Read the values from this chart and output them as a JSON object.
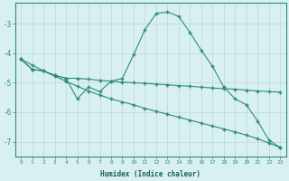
{
  "xlabel": "Humidex (Indice chaleur)",
  "x": [
    0,
    1,
    2,
    3,
    4,
    5,
    6,
    7,
    8,
    9,
    10,
    11,
    12,
    13,
    14,
    15,
    16,
    17,
    18,
    19,
    20,
    21,
    22,
    23
  ],
  "y_main": [
    -4.2,
    -4.55,
    -4.6,
    -4.75,
    -4.85,
    -5.55,
    -5.15,
    -5.3,
    -4.95,
    -4.85,
    -4.05,
    -3.2,
    -2.65,
    -2.6,
    -2.75,
    -3.3,
    -3.9,
    -4.45,
    -5.15,
    -5.55,
    -5.75,
    -6.3,
    -6.95,
    -7.2
  ],
  "y_upper": [
    -4.2,
    -4.55,
    -4.6,
    -4.75,
    -4.85,
    -4.85,
    -4.88,
    -4.92,
    -4.95,
    -4.98,
    -5.0,
    -5.02,
    -5.05,
    -5.07,
    -5.1,
    -5.12,
    -5.15,
    -5.18,
    -5.2,
    -5.22,
    -5.25,
    -5.28,
    -5.3,
    -5.32
  ],
  "y_lower": [
    -4.2,
    -4.4,
    -4.6,
    -4.78,
    -4.95,
    -5.12,
    -5.28,
    -5.42,
    -5.55,
    -5.65,
    -5.75,
    -5.87,
    -5.97,
    -6.07,
    -6.17,
    -6.27,
    -6.37,
    -6.47,
    -6.57,
    -6.67,
    -6.78,
    -6.9,
    -7.05,
    -7.2
  ],
  "line_color": "#2e8b7a",
  "bg_color": "#d9f0f0",
  "grid_color": "#b8d8d8",
  "ylim": [
    -7.5,
    -2.3
  ],
  "yticks": [
    -7,
    -6,
    -5,
    -4,
    -3
  ],
  "xlim": [
    -0.5,
    23.5
  ]
}
